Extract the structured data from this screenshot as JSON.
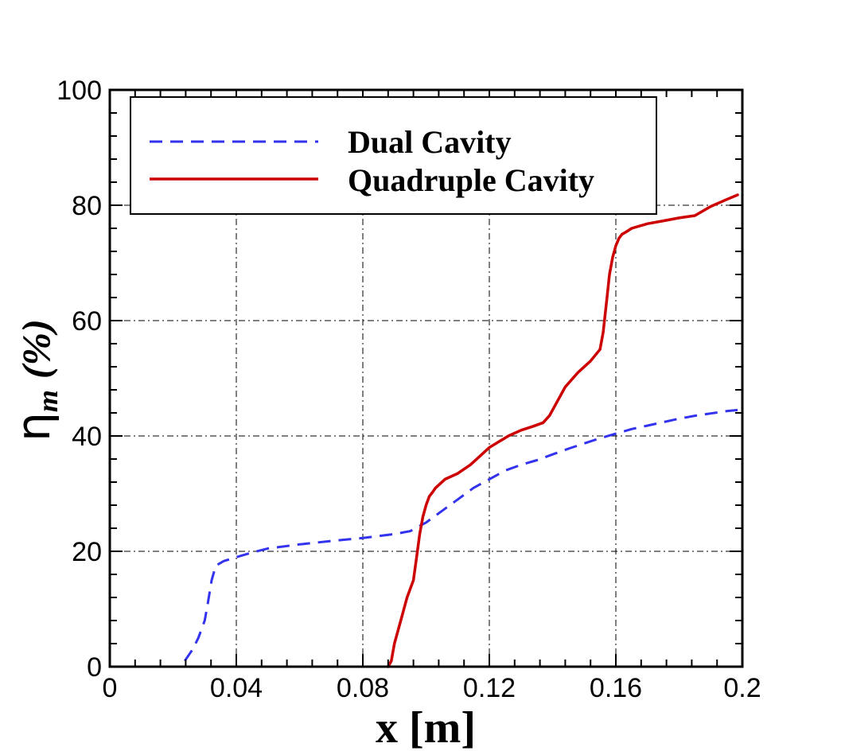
{
  "chart_data": {
    "type": "line",
    "xlabel": "x [m]",
    "ylabel": {
      "symbol": "η",
      "subscript": "m",
      "unit": "(%)"
    },
    "xlim": [
      0,
      0.2
    ],
    "ylim": [
      0,
      100
    ],
    "xticks": [
      0,
      0.04,
      0.08,
      0.12,
      0.16,
      0.2
    ],
    "xtick_labels": [
      "0",
      "0.04",
      "0.08",
      "0.12",
      "0.16",
      "0.2"
    ],
    "yticks": [
      0,
      20,
      40,
      60,
      80,
      100
    ],
    "ytick_labels": [
      "0",
      "20",
      "40",
      "60",
      "80",
      "100"
    ],
    "grid": true,
    "legend_position": "top-left",
    "series": [
      {
        "name": "Dual Cavity",
        "color": "#3333ee",
        "style": "dashed",
        "x": [
          0.0237,
          0.0262,
          0.028,
          0.03,
          0.031,
          0.0322,
          0.0335,
          0.036,
          0.04,
          0.045,
          0.05,
          0.06,
          0.07,
          0.08,
          0.09,
          0.095,
          0.1,
          0.105,
          0.11,
          0.115,
          0.12,
          0.125,
          0.13,
          0.135,
          0.14,
          0.145,
          0.15,
          0.155,
          0.16,
          0.165,
          0.17,
          0.175,
          0.18,
          0.185,
          0.19,
          0.195,
          0.1985
        ],
        "y": [
          1,
          3,
          5,
          8,
          11,
          15,
          17.5,
          18.3,
          19,
          19.8,
          20.5,
          21.2,
          21.8,
          22.3,
          23.0,
          23.5,
          25,
          27,
          29,
          31,
          32.5,
          34,
          35,
          35.8,
          36.8,
          37.8,
          38.7,
          39.6,
          40.4,
          41.2,
          41.8,
          42.4,
          43,
          43.5,
          43.9,
          44.3,
          44.5
        ]
      },
      {
        "name": "Quadruple Cavity",
        "color": "#cc0000",
        "style": "solid",
        "x": [
          0.088,
          0.089,
          0.09,
          0.092,
          0.094,
          0.096,
          0.097,
          0.098,
          0.099,
          0.1,
          0.101,
          0.102,
          0.103,
          0.106,
          0.11,
          0.114,
          0.117,
          0.12,
          0.123,
          0.126,
          0.13,
          0.134,
          0.137,
          0.139,
          0.14,
          0.142,
          0.144,
          0.148,
          0.152,
          0.155,
          0.156,
          0.157,
          0.158,
          0.159,
          0.16,
          0.161,
          0.162,
          0.163,
          0.165,
          0.17,
          0.175,
          0.18,
          0.185,
          0.19,
          0.195,
          0.1985
        ],
        "y": [
          0,
          1,
          4,
          8,
          12,
          15,
          19,
          23,
          26,
          28,
          29.5,
          30.2,
          31,
          32.5,
          33.5,
          35,
          36.5,
          38,
          39,
          40,
          41,
          41.7,
          42.3,
          43.5,
          44.5,
          46.5,
          48.5,
          51,
          53,
          55,
          58,
          63,
          68,
          71,
          73,
          74.3,
          75,
          75.3,
          76,
          76.8,
          77.3,
          77.8,
          78.2,
          79.8,
          81,
          81.8
        ]
      }
    ]
  }
}
